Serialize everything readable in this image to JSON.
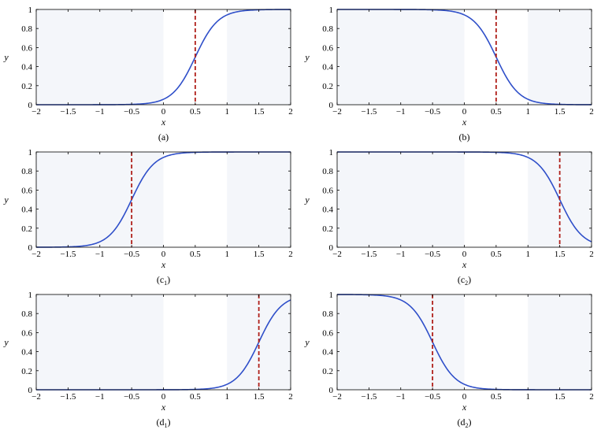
{
  "colors": {
    "curve": "#2f4fc9",
    "threshold": "#b0201a",
    "shade": "#f4f6fa",
    "axis": "#000000"
  },
  "axes": {
    "xlabel": "x",
    "ylabel": "y",
    "xlim": [
      -2,
      2
    ],
    "ylim": [
      0,
      1
    ],
    "xticks": [
      "−2",
      "−1.5",
      "−1",
      "−0.5",
      "0",
      "0.5",
      "1",
      "1.5",
      "2"
    ],
    "yticks": [
      "0",
      "0.2",
      "0.4",
      "0.6",
      "0.8",
      "1"
    ]
  },
  "chart_data": [
    {
      "type": "line",
      "caption": "(a)",
      "caption_main": "(a)",
      "caption_sub": "",
      "center": 0.5,
      "direction": "increasing",
      "threshold_x": 0.5,
      "shaded_x_ranges": [
        [
          -2,
          0
        ],
        [
          1,
          2
        ]
      ],
      "xlim": [
        -2,
        2
      ],
      "ylim": [
        0,
        1
      ],
      "grid": false
    },
    {
      "type": "line",
      "caption": "(b)",
      "caption_main": "(b)",
      "caption_sub": "",
      "center": 0.5,
      "direction": "decreasing",
      "threshold_x": 0.5,
      "shaded_x_ranges": [
        [
          -2,
          0
        ],
        [
          1,
          2
        ]
      ],
      "xlim": [
        -2,
        2
      ],
      "ylim": [
        0,
        1
      ],
      "grid": false
    },
    {
      "type": "line",
      "caption": "(c1)",
      "caption_main": "(c",
      "caption_sub": "1",
      "center": -0.5,
      "direction": "increasing",
      "threshold_x": -0.5,
      "shaded_x_ranges": [
        [
          -2,
          0
        ],
        [
          1,
          2
        ]
      ],
      "xlim": [
        -2,
        2
      ],
      "ylim": [
        0,
        1
      ],
      "grid": false
    },
    {
      "type": "line",
      "caption": "(c2)",
      "caption_main": "(c",
      "caption_sub": "2",
      "center": 1.5,
      "direction": "decreasing",
      "threshold_x": 1.5,
      "shaded_x_ranges": [
        [
          -2,
          0
        ],
        [
          1,
          2
        ]
      ],
      "xlim": [
        -2,
        2
      ],
      "ylim": [
        0,
        1
      ],
      "grid": false
    },
    {
      "type": "line",
      "caption": "(d1)",
      "caption_main": "(d",
      "caption_sub": "1",
      "center": 1.5,
      "direction": "increasing",
      "threshold_x": 1.5,
      "shaded_x_ranges": [
        [
          -2,
          0
        ],
        [
          1,
          2
        ]
      ],
      "xlim": [
        -2,
        2
      ],
      "ylim": [
        0,
        1
      ],
      "grid": false
    },
    {
      "type": "line",
      "caption": "(d2)",
      "caption_main": "(d",
      "caption_sub": "2",
      "center": -0.5,
      "direction": "decreasing",
      "threshold_x": -0.5,
      "shaded_x_ranges": [
        [
          -2,
          0
        ],
        [
          1,
          2
        ]
      ],
      "xlim": [
        -2,
        2
      ],
      "ylim": [
        0,
        1
      ],
      "grid": false
    }
  ]
}
